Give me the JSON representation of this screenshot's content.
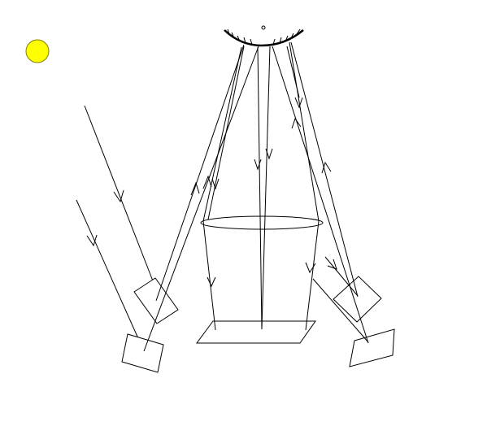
{
  "diagram": {
    "sun_color": "#ffff00",
    "sun_outline_color": "#808000",
    "line_color": "#000000",
    "background_color": "#ffffff"
  }
}
